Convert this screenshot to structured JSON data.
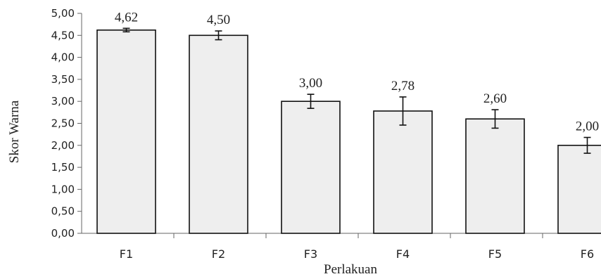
{
  "chart_data": {
    "type": "bar",
    "categories": [
      "F1",
      "F2",
      "F3",
      "F4",
      "F5",
      "F6"
    ],
    "values": [
      4.62,
      4.5,
      3.0,
      2.78,
      2.6,
      2.0
    ],
    "value_labels": [
      "4,62",
      "4,50",
      "3,00",
      "2,78",
      "2,60",
      "2,00"
    ],
    "error": [
      0.04,
      0.1,
      0.16,
      0.32,
      0.21,
      0.18
    ],
    "title": "",
    "xlabel": "Perlakuan",
    "ylabel": "Skor Warna",
    "ylim": [
      0,
      5
    ],
    "yticks": [
      0,
      0.5,
      1,
      1.5,
      2,
      2.5,
      3,
      3.5,
      4,
      4.5,
      5
    ],
    "ytick_labels": [
      "0,00",
      "0,50",
      "1,00",
      "1,50",
      "2,00",
      "2,50",
      "3,00",
      "3,50",
      "4,00",
      "4,50",
      "5,00"
    ],
    "grid": false,
    "legend": "none",
    "colors": {
      "bar_fill": "#eeeeee",
      "bar_stroke": "#111111",
      "axis": "#666666",
      "error_bar": "#111111"
    }
  }
}
